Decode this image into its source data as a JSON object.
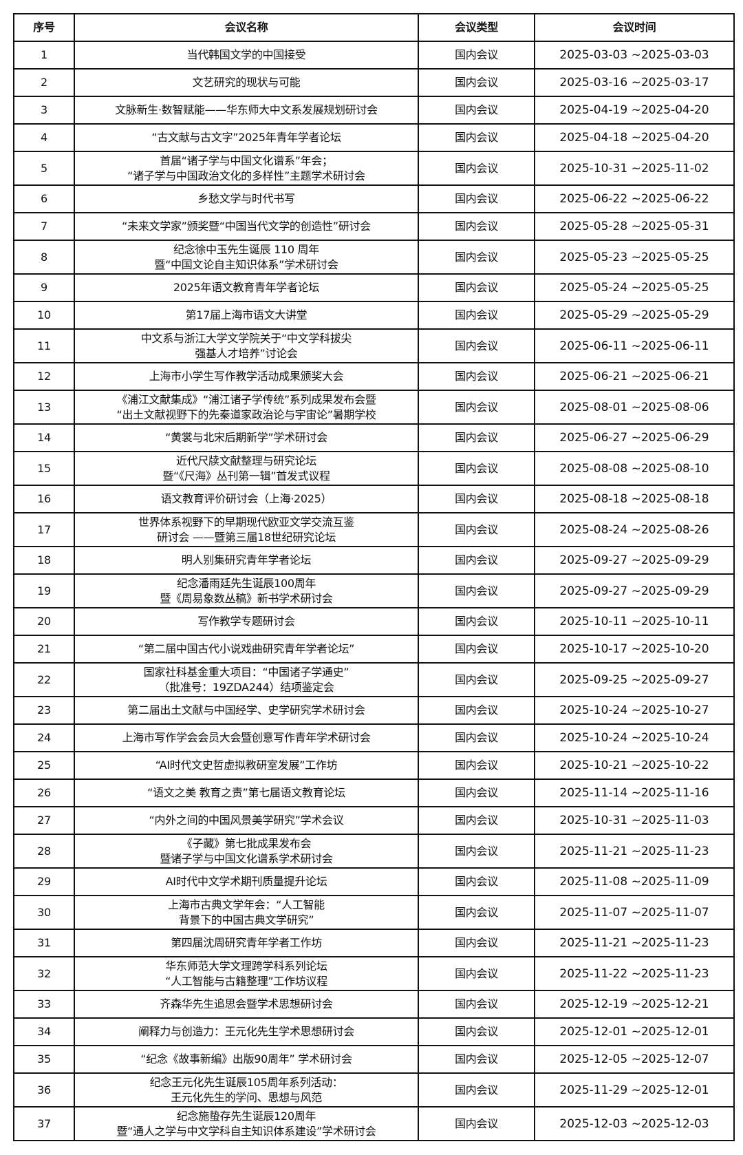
{
  "table": {
    "headers": [
      "序号",
      "会议名称",
      "会议类型",
      "会议时间"
    ],
    "rows": [
      {
        "no": "1",
        "name": [
          "当代韩国文学的中国接受"
        ],
        "type": "国内会议",
        "date": "2025-03-03 ~2025-03-03"
      },
      {
        "no": "2",
        "name": [
          "文艺研究的现状与可能"
        ],
        "type": "国内会议",
        "date": "2025-03-16 ~2025-03-17"
      },
      {
        "no": "3",
        "name": [
          "文脉新生·数智赋能——华东师大中文系发展规划研讨会"
        ],
        "type": "国内会议",
        "date": "2025-04-19 ~2025-04-20"
      },
      {
        "no": "4",
        "name": [
          "“古文献与古文字”2025年青年学者论坛"
        ],
        "type": "国内会议",
        "date": "2025-04-18 ~2025-04-20"
      },
      {
        "no": "5",
        "name": [
          "首届“诸子学与中国文化谱系”年会；",
          "“诸子学与中国政治文化的多样性”主题学术研讨会"
        ],
        "type": "国内会议",
        "date": "2025-10-31 ~2025-11-02"
      },
      {
        "no": "6",
        "name": [
          "乡愁文学与时代书写"
        ],
        "type": "国内会议",
        "date": "2025-06-22 ~2025-06-22"
      },
      {
        "no": "7",
        "name": [
          "“未来文学家”颁奖暨“中国当代文学的创造性”研讨会"
        ],
        "type": "国内会议",
        "date": "2025-05-28 ~2025-05-31"
      },
      {
        "no": "8",
        "name": [
          "纪念徐中玉先生诞辰 110 周年",
          "暨“中国文论自主知识体系”学术研讨会"
        ],
        "type": "国内会议",
        "date": "2025-05-23 ~2025-05-25"
      },
      {
        "no": "9",
        "name": [
          "2025年语文教育青年学者论坛"
        ],
        "type": "国内会议",
        "date": "2025-05-24 ~2025-05-25"
      },
      {
        "no": "10",
        "name": [
          "第17届上海市语文大讲堂"
        ],
        "type": "国内会议",
        "date": "2025-05-29 ~2025-05-29"
      },
      {
        "no": "11",
        "name": [
          "中文系与浙江大学文学院关于“中文学科拔尖",
          "强基人才培养”讨论会"
        ],
        "type": "国内会议",
        "date": "2025-06-11 ~2025-06-11"
      },
      {
        "no": "12",
        "name": [
          "上海市小学生写作教学活动成果颁奖大会"
        ],
        "type": "国内会议",
        "date": "2025-06-21 ~2025-06-21"
      },
      {
        "no": "13",
        "name": [
          "《浦江文献集成》“浦江诸子学传统”系列成果发布会暨",
          "“出土文献视野下的先秦道家政治论与宇宙论”暑期学校"
        ],
        "type": "国内会议",
        "date": "2025-08-01 ~2025-08-06"
      },
      {
        "no": "14",
        "name": [
          "“黄裳与北宋后期新学”学术研讨会"
        ],
        "type": "国内会议",
        "date": "2025-06-27 ~2025-06-29"
      },
      {
        "no": "15",
        "name": [
          "近代尺牍文献整理与研究论坛",
          "暨“《尺海》丛刊第一辑”首发式议程"
        ],
        "type": "国内会议",
        "date": "2025-08-08 ~2025-08-10"
      },
      {
        "no": "16",
        "name": [
          "语文教育评价研讨会（上海·2025）"
        ],
        "type": "国内会议",
        "date": "2025-08-18 ~2025-08-18"
      },
      {
        "no": "17",
        "name": [
          "世界体系视野下的早期现代欧亚文学交流互鉴",
          "研讨会 ——暨第三届18世纪研究论坛"
        ],
        "type": "国内会议",
        "date": "2025-08-24 ~2025-08-26"
      },
      {
        "no": "18",
        "name": [
          "明人别集研究青年学者论坛"
        ],
        "type": "国内会议",
        "date": "2025-09-27 ~2025-09-29"
      },
      {
        "no": "19",
        "name": [
          "纪念潘雨廷先生诞辰100周年",
          "暨《周易象数丛稿》新书学术研讨会"
        ],
        "type": "国内会议",
        "date": "2025-09-27 ~2025-09-29"
      },
      {
        "no": "20",
        "name": [
          "写作教学专题研讨会"
        ],
        "type": "国内会议",
        "date": "2025-10-11 ~2025-10-11"
      },
      {
        "no": "21",
        "name": [
          "“第二届中国古代小说戏曲研究青年学者论坛”"
        ],
        "type": "国内会议",
        "date": "2025-10-17 ~2025-10-20"
      },
      {
        "no": "22",
        "name": [
          "国家社科基金重大项目：“中国诸子学通史”",
          "（批准号：19ZDA244）结项鉴定会"
        ],
        "type": "国内会议",
        "date": "2025-09-25 ~2025-09-27"
      },
      {
        "no": "23",
        "name": [
          "第二届出土文献与中国经学、史学研究学术研讨会"
        ],
        "type": "国内会议",
        "date": "2025-10-24 ~2025-10-27"
      },
      {
        "no": "24",
        "name": [
          "上海市写作学会会员大会暨创意写作青年学术研讨会"
        ],
        "type": "国内会议",
        "date": "2025-10-24 ~2025-10-24"
      },
      {
        "no": "25",
        "name": [
          "“AI时代文史哲虚拟教研室发展”工作坊"
        ],
        "type": "国内会议",
        "date": "2025-10-21 ~2025-10-22"
      },
      {
        "no": "26",
        "name": [
          "“语文之美 教育之责”第七届语文教育论坛"
        ],
        "type": "国内会议",
        "date": "2025-11-14 ~2025-11-16"
      },
      {
        "no": "27",
        "name": [
          "“内外之间的中国风景美学研究”学术会议"
        ],
        "type": "国内会议",
        "date": "2025-10-31 ~2025-11-03"
      },
      {
        "no": "28",
        "name": [
          "《子藏》第七批成果发布会",
          "暨诸子学与中国文化谱系学术研讨会"
        ],
        "type": "国内会议",
        "date": "2025-11-21 ~2025-11-23"
      },
      {
        "no": "29",
        "name": [
          "AI时代中文学术期刊质量提升论坛"
        ],
        "type": "国内会议",
        "date": "2025-11-08 ~2025-11-09"
      },
      {
        "no": "30",
        "name": [
          "上海市古典文学年会：“人工智能",
          "背景下的中国古典文学研究”"
        ],
        "type": "国内会议",
        "date": "2025-11-07 ~2025-11-07"
      },
      {
        "no": "31",
        "name": [
          "第四届沈周研究青年学者工作坊"
        ],
        "type": "国内会议",
        "date": "2025-11-21 ~2025-11-23"
      },
      {
        "no": "32",
        "name": [
          "华东师范大学文理跨学科系列论坛",
          "“人工智能与古籍整理”工作坊议程"
        ],
        "type": "国内会议",
        "date": "2025-11-22 ~2025-11-23"
      },
      {
        "no": "33",
        "name": [
          "齐森华先生追思会暨学术思想研讨会"
        ],
        "type": "国内会议",
        "date": "2025-12-19 ~2025-12-21"
      },
      {
        "no": "34",
        "name": [
          "阐释力与创造力：王元化先生学术思想研讨会"
        ],
        "type": "国内会议",
        "date": "2025-12-01 ~2025-12-01"
      },
      {
        "no": "35",
        "name": [
          "“纪念《故事新编》出版90周年” 学术研讨会"
        ],
        "type": "国内会议",
        "date": "2025-12-05 ~2025-12-07"
      },
      {
        "no": "36",
        "name": [
          "纪念王元化先生诞辰105周年系列活动：",
          "王元化先生的学问、思想与风范"
        ],
        "type": "国内会议",
        "date": "2025-11-29 ~2025-12-01"
      },
      {
        "no": "37",
        "name": [
          "纪念施蛰存先生诞辰120周年",
          "暨“通人之学与中文学科自主知识体系建设”学术研讨会"
        ],
        "type": "国内会议",
        "date": "2025-12-03 ~2025-12-03"
      }
    ]
  }
}
